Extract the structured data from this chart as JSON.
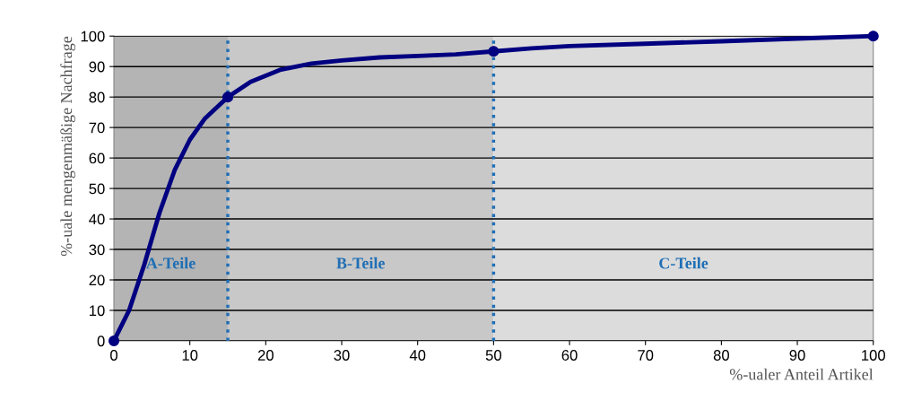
{
  "chart_data": {
    "type": "line",
    "xlabel": "%-ualer Anteil Artikel",
    "ylabel": "%-uale mengenmäßige Nachfrage",
    "xlim": [
      0,
      100
    ],
    "xticks": [
      0,
      10,
      20,
      30,
      40,
      50,
      60,
      70,
      80,
      90,
      100
    ],
    "ylim": [
      0,
      100
    ],
    "yticks": [
      0,
      10,
      20,
      30,
      40,
      50,
      60,
      70,
      80,
      90,
      100
    ],
    "grid": "y",
    "legend": false,
    "line_style": "solid",
    "series": [
      {
        "color": "#000080",
        "marker": "none",
        "x": [
          0,
          2,
          4,
          6,
          8,
          10,
          12,
          15,
          18,
          22,
          26,
          30,
          35,
          40,
          45,
          50,
          55,
          60,
          70,
          80,
          90,
          100
        ],
        "values": [
          0,
          10,
          25,
          42,
          56,
          66,
          73,
          80,
          85,
          89,
          91,
          92,
          93,
          93.5,
          94,
          95,
          96,
          96.7,
          97.5,
          98.3,
          99.2,
          100
        ]
      },
      {
        "type": "scatter",
        "color": "#000080",
        "marker": "circle",
        "x": [
          0,
          15,
          50,
          100
        ],
        "values": [
          0,
          80,
          95,
          100
        ]
      }
    ],
    "bands": [
      {
        "axis": "x",
        "from": 0,
        "to": 15,
        "label": "A-Teile",
        "color": "#b4b4b4"
      },
      {
        "axis": "x",
        "from": 15,
        "to": 50,
        "label": "B-Teile",
        "color": "#c8c8c8"
      },
      {
        "axis": "x",
        "from": 50,
        "to": 100,
        "label": "C-Teile",
        "color": "#dcdcdc"
      }
    ],
    "ref_lines": [
      {
        "axis": "x",
        "value": 15,
        "color": "#1f6fb5",
        "line_style": "dotted"
      },
      {
        "axis": "x",
        "value": 50,
        "color": "#1f6fb5",
        "line_style": "dotted"
      }
    ]
  }
}
